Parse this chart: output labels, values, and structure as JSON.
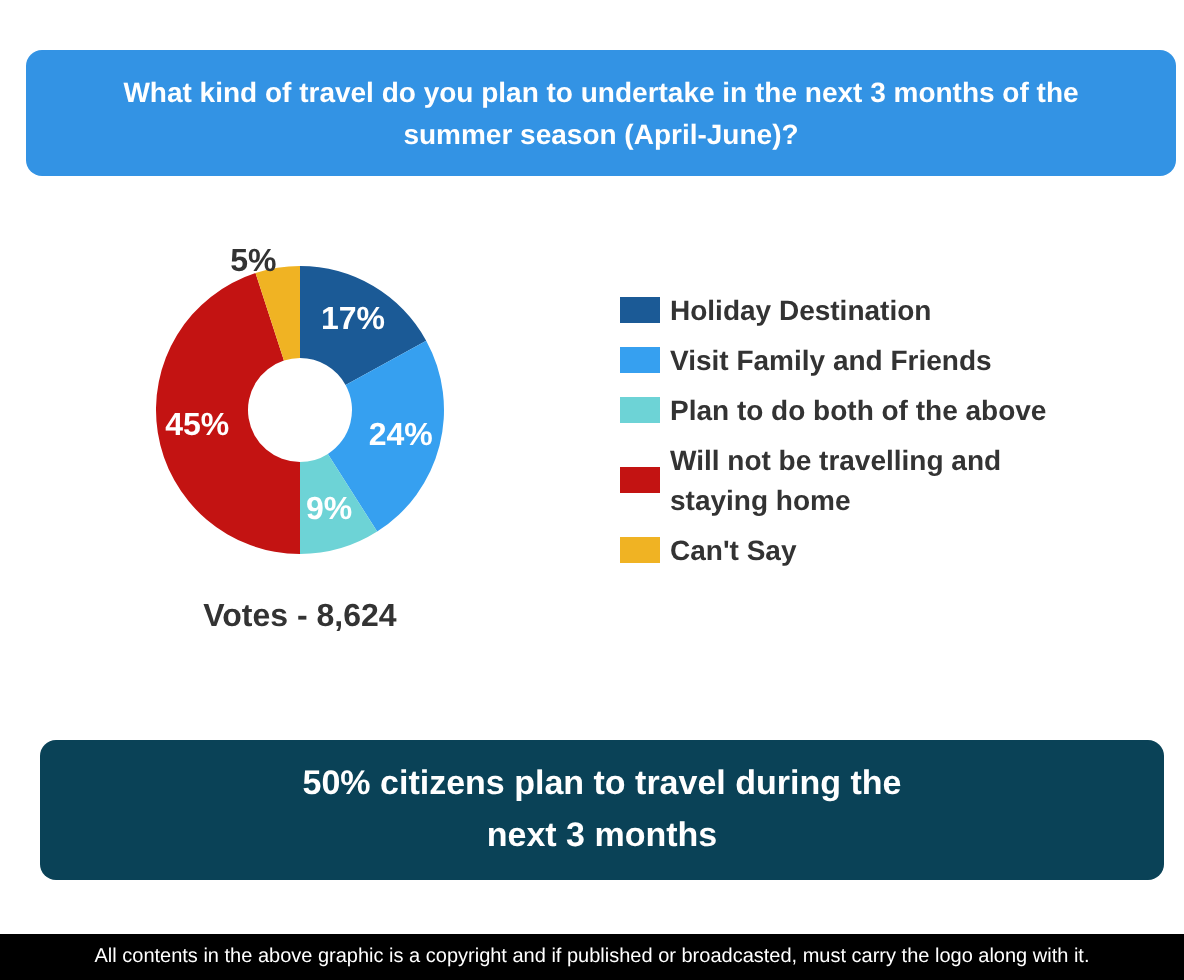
{
  "chart_data": {
    "type": "donut",
    "title": "What kind of travel do you plan to undertake in the next 3 months of the summer season (April-June)?",
    "categories": [
      "Holiday Destination",
      "Visit Family and Friends",
      "Plan to do both of the above",
      "Will not be travelling and staying home",
      "Can't Say"
    ],
    "values": [
      17,
      24,
      9,
      45,
      5
    ],
    "colors": [
      "#1b5a96",
      "#36a0f0",
      "#6dd3d6",
      "#c31312",
      "#f0b323"
    ],
    "value_labels": [
      "17%",
      "24%",
      "9%",
      "45%",
      "5%"
    ],
    "legend": "right",
    "annotations": [
      "Votes - 8,624",
      "50% citizens plan to travel during the next 3 months",
      "All contents in the above graphic is a copyright and if published or broadcasted, must carry the logo along with it."
    ]
  }
}
